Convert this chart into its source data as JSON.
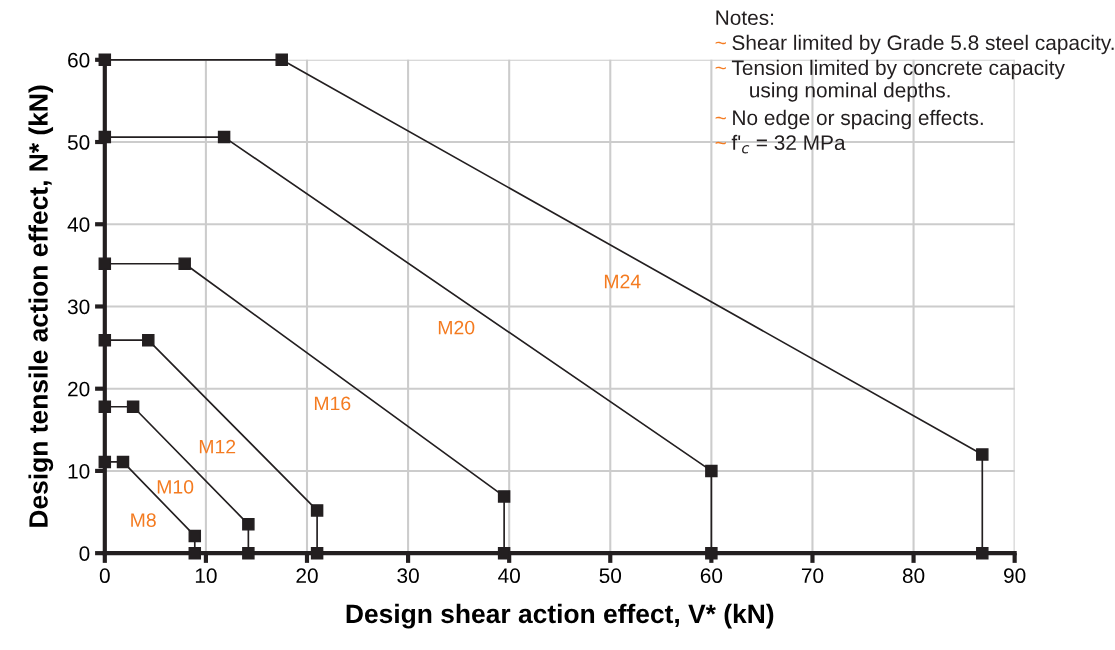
{
  "chart_data": {
    "type": "line",
    "xlabel": "Design shear action effect, V* (kN)",
    "ylabel": "Design tensile action effect, N* (kN)",
    "xlim": [
      0,
      90
    ],
    "ylim": [
      0,
      60
    ],
    "xticks": [
      0,
      10,
      20,
      30,
      40,
      50,
      60,
      70,
      80,
      90
    ],
    "yticks": [
      0,
      10,
      20,
      30,
      40,
      50,
      60
    ],
    "grid": true,
    "marker": "square",
    "line_style": "solid",
    "series": [
      {
        "name": "M8",
        "color": "#231f20",
        "x": [
          0,
          1.8,
          8.9,
          8.9
        ],
        "values": [
          11.1,
          11.1,
          2.1,
          0
        ]
      },
      {
        "name": "M10",
        "color": "#231f20",
        "x": [
          0,
          2.8,
          14.2,
          14.2
        ],
        "values": [
          17.8,
          17.8,
          3.5,
          0
        ]
      },
      {
        "name": "M12",
        "color": "#231f20",
        "x": [
          0,
          4.3,
          21,
          21
        ],
        "values": [
          25.9,
          25.9,
          5.2,
          0
        ]
      },
      {
        "name": "M16",
        "color": "#231f20",
        "x": [
          0,
          7.9,
          39.5,
          39.5
        ],
        "values": [
          35.2,
          35.2,
          6.9,
          0
        ]
      },
      {
        "name": "M20",
        "color": "#231f20",
        "x": [
          0,
          11.8,
          60,
          60
        ],
        "values": [
          50.6,
          50.6,
          10,
          0
        ]
      },
      {
        "name": "M24",
        "color": "#231f20",
        "x": [
          0,
          17.5,
          86.8,
          86.8
        ],
        "values": [
          60,
          60,
          12,
          0
        ]
      }
    ],
    "annotations": [
      "Notes:",
      "~ Shear limited by Grade 5.8 steel capacity.",
      "~ Tension limited by concrete capacity\n   using nominal depths.",
      "~ No edge or spacing effects.",
      "~ f'$_{c}$ = 32 MPa"
    ]
  }
}
